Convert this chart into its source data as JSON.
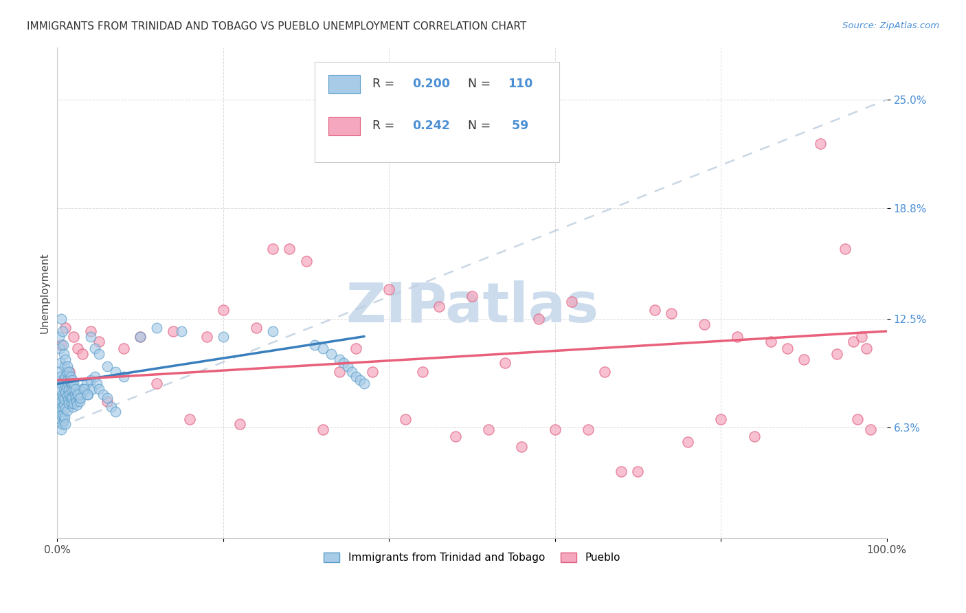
{
  "title": "IMMIGRANTS FROM TRINIDAD AND TOBAGO VS PUEBLO UNEMPLOYMENT CORRELATION CHART",
  "source": "Source: ZipAtlas.com",
  "ylabel": "Unemployment",
  "ytick_labels": [
    "25.0%",
    "18.8%",
    "12.5%",
    "6.3%"
  ],
  "ytick_values": [
    0.25,
    0.188,
    0.125,
    0.063
  ],
  "xrange": [
    0.0,
    1.0
  ],
  "yrange": [
    0.0,
    0.28
  ],
  "color_blue_fill": "#a8cce8",
  "color_blue_edge": "#5b9ec9",
  "color_blue_line": "#3a7fbd",
  "color_pink_fill": "#f4a7be",
  "color_pink_edge": "#e06080",
  "color_pink_line": "#e8607a",
  "color_dashed": "#c0cfe0",
  "watermark_color": "#cddcec",
  "blue_x": [
    0.002,
    0.002,
    0.003,
    0.003,
    0.003,
    0.004,
    0.004,
    0.004,
    0.005,
    0.005,
    0.005,
    0.005,
    0.006,
    0.006,
    0.006,
    0.007,
    0.007,
    0.007,
    0.008,
    0.008,
    0.008,
    0.009,
    0.009,
    0.009,
    0.01,
    0.01,
    0.01,
    0.01,
    0.011,
    0.011,
    0.012,
    0.012,
    0.012,
    0.013,
    0.013,
    0.014,
    0.014,
    0.015,
    0.015,
    0.016,
    0.016,
    0.017,
    0.017,
    0.018,
    0.018,
    0.019,
    0.02,
    0.02,
    0.021,
    0.022,
    0.023,
    0.024,
    0.025,
    0.026,
    0.027,
    0.028,
    0.03,
    0.031,
    0.033,
    0.035,
    0.037,
    0.04,
    0.042,
    0.045,
    0.048,
    0.05,
    0.055,
    0.06,
    0.065,
    0.07,
    0.002,
    0.003,
    0.004,
    0.005,
    0.006,
    0.007,
    0.008,
    0.009,
    0.01,
    0.012,
    0.014,
    0.016,
    0.018,
    0.02,
    0.022,
    0.025,
    0.028,
    0.032,
    0.036,
    0.04,
    0.045,
    0.05,
    0.06,
    0.07,
    0.08,
    0.1,
    0.12,
    0.15,
    0.2,
    0.26,
    0.31,
    0.32,
    0.33,
    0.34,
    0.345,
    0.35,
    0.355,
    0.36,
    0.365,
    0.37
  ],
  "blue_y": [
    0.09,
    0.075,
    0.085,
    0.095,
    0.072,
    0.08,
    0.092,
    0.068,
    0.088,
    0.078,
    0.07,
    0.062,
    0.082,
    0.075,
    0.065,
    0.09,
    0.08,
    0.07,
    0.085,
    0.076,
    0.067,
    0.088,
    0.079,
    0.069,
    0.092,
    0.083,
    0.074,
    0.065,
    0.095,
    0.086,
    0.09,
    0.081,
    0.073,
    0.088,
    0.079,
    0.085,
    0.077,
    0.09,
    0.082,
    0.088,
    0.08,
    0.085,
    0.077,
    0.088,
    0.08,
    0.075,
    0.085,
    0.077,
    0.082,
    0.08,
    0.078,
    0.076,
    0.082,
    0.08,
    0.078,
    0.082,
    0.085,
    0.083,
    0.085,
    0.088,
    0.082,
    0.09,
    0.085,
    0.092,
    0.088,
    0.085,
    0.082,
    0.08,
    0.075,
    0.072,
    0.115,
    0.108,
    0.1,
    0.125,
    0.118,
    0.11,
    0.105,
    0.098,
    0.102,
    0.098,
    0.095,
    0.092,
    0.09,
    0.088,
    0.085,
    0.082,
    0.08,
    0.085,
    0.082,
    0.115,
    0.108,
    0.105,
    0.098,
    0.095,
    0.092,
    0.115,
    0.12,
    0.118,
    0.115,
    0.118,
    0.11,
    0.108,
    0.105,
    0.102,
    0.1,
    0.098,
    0.095,
    0.092,
    0.09,
    0.088
  ],
  "pink_x": [
    0.005,
    0.01,
    0.015,
    0.02,
    0.025,
    0.03,
    0.04,
    0.05,
    0.06,
    0.08,
    0.1,
    0.12,
    0.14,
    0.16,
    0.18,
    0.2,
    0.22,
    0.24,
    0.26,
    0.28,
    0.3,
    0.32,
    0.34,
    0.36,
    0.38,
    0.4,
    0.42,
    0.44,
    0.46,
    0.48,
    0.5,
    0.52,
    0.54,
    0.56,
    0.58,
    0.6,
    0.62,
    0.64,
    0.66,
    0.68,
    0.7,
    0.72,
    0.74,
    0.76,
    0.78,
    0.8,
    0.82,
    0.84,
    0.86,
    0.88,
    0.9,
    0.92,
    0.94,
    0.95,
    0.96,
    0.965,
    0.97,
    0.975,
    0.98
  ],
  "pink_y": [
    0.11,
    0.12,
    0.095,
    0.115,
    0.108,
    0.105,
    0.118,
    0.112,
    0.078,
    0.108,
    0.115,
    0.088,
    0.118,
    0.068,
    0.115,
    0.13,
    0.065,
    0.12,
    0.165,
    0.165,
    0.158,
    0.062,
    0.095,
    0.108,
    0.095,
    0.142,
    0.068,
    0.095,
    0.132,
    0.058,
    0.138,
    0.062,
    0.1,
    0.052,
    0.125,
    0.062,
    0.135,
    0.062,
    0.095,
    0.038,
    0.038,
    0.13,
    0.128,
    0.055,
    0.122,
    0.068,
    0.115,
    0.058,
    0.112,
    0.108,
    0.102,
    0.225,
    0.105,
    0.165,
    0.112,
    0.068,
    0.115,
    0.108,
    0.062
  ],
  "blue_line_x": [
    0.0,
    0.37
  ],
  "blue_line_y": [
    0.088,
    0.115
  ],
  "pink_line_x": [
    0.0,
    1.0
  ],
  "pink_line_y": [
    0.09,
    0.118
  ],
  "dash_line_x": [
    0.0,
    1.0
  ],
  "dash_line_y": [
    0.063,
    0.25
  ]
}
